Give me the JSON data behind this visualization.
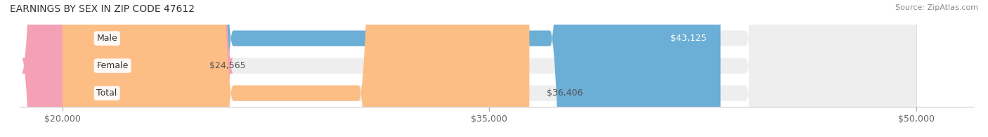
{
  "title": "EARNINGS BY SEX IN ZIP CODE 47612",
  "source": "Source: ZipAtlas.com",
  "categories": [
    "Male",
    "Female",
    "Total"
  ],
  "values": [
    43125,
    24565,
    36406
  ],
  "bar_colors": [
    "#6baed6",
    "#f4a0b5",
    "#fdbe85"
  ],
  "bar_bg_color": "#eeeeee",
  "label_bg_color": "#ffffff",
  "label_texts": [
    "$43,125",
    "$24,565",
    "$36,406"
  ],
  "x_min": 20000,
  "x_max": 50000,
  "x_ticks": [
    20000,
    35000,
    50000
  ],
  "x_tick_labels": [
    "$20,000",
    "$35,000",
    "$50,000"
  ],
  "bar_height": 0.55,
  "title_fontsize": 10,
  "source_fontsize": 8,
  "label_fontsize": 9,
  "tick_fontsize": 9,
  "cat_fontsize": 9,
  "fig_bg": "#ffffff"
}
